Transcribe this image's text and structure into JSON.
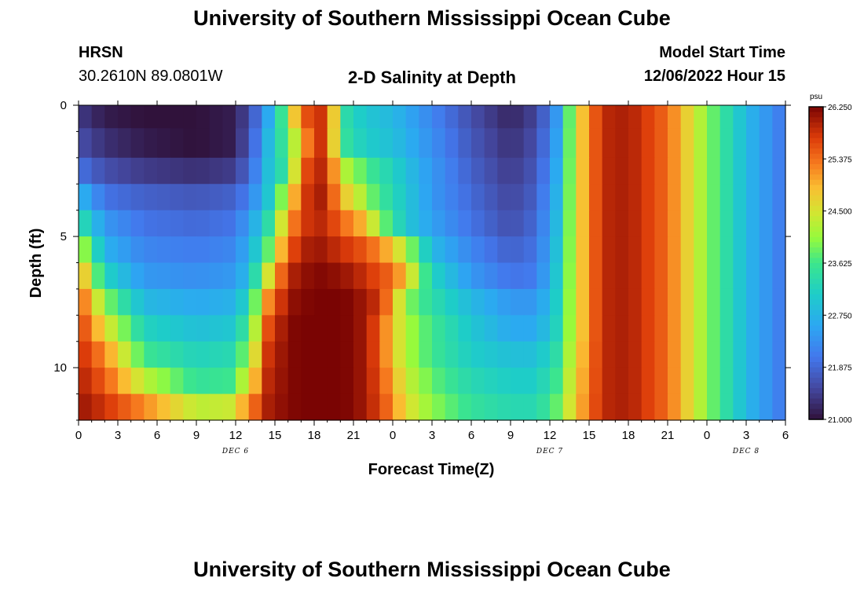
{
  "header": {
    "title": "University of Southern Mississippi Ocean Cube",
    "station": "HRSN",
    "coords": "30.2610N  89.0801W",
    "plot_title": "2-D Salinity at Depth",
    "model_label": "Model Start Time",
    "model_time": "12/06/2022 Hour 15"
  },
  "footer": {
    "title": "University of Southern Mississippi Ocean Cube"
  },
  "chart_data": {
    "type": "heatmap",
    "title": "2-D Salinity at Depth",
    "xlabel": "Forecast Time(Z)",
    "ylabel": "Depth (ft)",
    "x_range_hours": [
      0,
      54
    ],
    "y_range_ft": [
      0,
      12
    ],
    "x_tick_labels": [
      "0",
      "3",
      "6",
      "9",
      "12",
      "15",
      "18",
      "21",
      "0",
      "3",
      "6",
      "9",
      "12",
      "15",
      "18",
      "21",
      "0",
      "3",
      "6"
    ],
    "y_tick_labels": [
      "0",
      "5",
      "10"
    ],
    "y_tick_values": [
      0,
      5,
      10
    ],
    "date_labels": [
      {
        "text": "DEC 6",
        "hour": 12
      },
      {
        "text": "DEC 7",
        "hour": 36
      },
      {
        "text": "DEC 8",
        "hour": 51
      }
    ],
    "colorbar": {
      "unit": "psu",
      "min": 21.0,
      "max": 26.25,
      "tick_labels": [
        "26.250",
        "25.375",
        "24.500",
        "23.625",
        "22.750",
        "21.875",
        "21.000"
      ],
      "tick_values": [
        26.25,
        25.375,
        24.5,
        23.625,
        22.75,
        21.875,
        21.0
      ]
    },
    "rows_depth_ft": [
      0.25,
      1.5,
      2.5,
      3.5,
      4.5,
      5.5,
      6.5,
      7.5,
      8.5,
      9.5,
      10.5,
      11.5
    ],
    "keyframe_hours": [
      0,
      2,
      5,
      9,
      11.5,
      13,
      14.5,
      16,
      17,
      18,
      19,
      20,
      21,
      22,
      23,
      24,
      25,
      27,
      30,
      33,
      35,
      36.5,
      38,
      40,
      42,
      45,
      48,
      51,
      54
    ],
    "keyframe_values": [
      [
        21.4,
        21.1,
        21.0,
        21.0,
        21.1,
        21.5,
        22.6,
        24.0,
        25.6,
        25.6,
        26.0,
        23.5,
        23.2,
        23.0,
        22.9,
        22.8,
        22.6,
        22.2,
        21.6,
        21.2,
        21.5,
        22.4,
        24.5,
        25.9,
        26.0,
        25.4,
        24.0,
        22.8,
        22.0
      ],
      [
        21.6,
        21.3,
        21.1,
        21.0,
        21.1,
        21.6,
        22.8,
        23.8,
        24.8,
        25.8,
        25.8,
        23.6,
        23.3,
        23.1,
        23.0,
        22.9,
        22.7,
        22.3,
        21.7,
        21.3,
        21.6,
        22.5,
        24.5,
        25.9,
        26.0,
        25.4,
        24.0,
        22.8,
        22.0
      ],
      [
        22.0,
        21.6,
        21.4,
        21.3,
        21.4,
        21.8,
        22.9,
        23.6,
        25.4,
        25.9,
        25.9,
        24.4,
        24.0,
        23.7,
        23.4,
        23.2,
        22.9,
        22.4,
        21.8,
        21.4,
        21.7,
        22.6,
        24.5,
        25.9,
        26.0,
        25.4,
        24.0,
        22.8,
        22.0
      ],
      [
        22.8,
        22.0,
        21.8,
        21.7,
        21.8,
        22.1,
        23.0,
        24.4,
        25.6,
        26.0,
        26.0,
        24.8,
        24.6,
        24.0,
        23.6,
        23.3,
        23.0,
        22.4,
        21.9,
        21.5,
        21.8,
        22.7,
        24.5,
        25.9,
        26.0,
        25.4,
        24.0,
        22.8,
        22.0
      ],
      [
        23.5,
        22.4,
        22.0,
        21.9,
        22.0,
        22.4,
        23.4,
        25.0,
        25.7,
        25.9,
        25.9,
        25.4,
        25.2,
        24.8,
        24.0,
        23.5,
        23.0,
        22.5,
        22.0,
        21.6,
        21.9,
        22.8,
        24.5,
        25.9,
        26.0,
        25.4,
        24.0,
        22.8,
        22.0
      ],
      [
        24.4,
        22.7,
        22.2,
        22.1,
        22.2,
        22.6,
        23.8,
        25.5,
        25.9,
        26.1,
        26.0,
        25.8,
        25.7,
        25.5,
        25.2,
        24.8,
        24.2,
        22.8,
        22.2,
        21.8,
        22.0,
        22.9,
        24.5,
        25.9,
        26.0,
        25.4,
        24.0,
        22.8,
        22.0
      ],
      [
        25.2,
        23.2,
        22.4,
        22.3,
        22.4,
        22.8,
        24.5,
        25.9,
        26.1,
        26.2,
        26.2,
        26.1,
        26.0,
        25.8,
        25.6,
        25.4,
        24.8,
        23.2,
        22.4,
        22.0,
        22.1,
        23.0,
        24.5,
        25.9,
        26.0,
        25.4,
        24.0,
        22.8,
        22.0
      ],
      [
        25.6,
        24.0,
        22.8,
        22.6,
        22.7,
        23.2,
        25.2,
        26.1,
        26.2,
        26.25,
        26.25,
        26.25,
        26.2,
        26.0,
        25.8,
        25.0,
        24.0,
        23.4,
        22.8,
        22.4,
        22.4,
        23.1,
        24.5,
        25.9,
        26.0,
        25.4,
        24.0,
        22.8,
        22.0
      ],
      [
        25.8,
        24.6,
        23.2,
        22.9,
        23.0,
        23.6,
        25.6,
        26.2,
        26.25,
        26.25,
        26.25,
        26.25,
        26.2,
        26.0,
        25.5,
        24.8,
        24.2,
        23.6,
        23.0,
        22.6,
        22.6,
        23.2,
        24.5,
        25.9,
        26.0,
        25.4,
        24.0,
        22.8,
        22.0
      ],
      [
        25.9,
        25.2,
        23.6,
        23.2,
        23.3,
        24.0,
        25.8,
        26.2,
        26.25,
        26.25,
        26.25,
        26.25,
        26.2,
        26.0,
        25.5,
        24.8,
        24.2,
        23.6,
        23.1,
        22.9,
        22.9,
        23.4,
        24.6,
        25.9,
        26.0,
        25.4,
        24.0,
        22.8,
        22.0
      ],
      [
        26.0,
        25.5,
        24.3,
        23.5,
        23.6,
        24.5,
        25.9,
        26.2,
        26.25,
        26.25,
        26.25,
        26.25,
        26.2,
        26.0,
        25.6,
        25.0,
        24.4,
        23.8,
        23.3,
        23.1,
        23.1,
        23.6,
        24.7,
        25.9,
        26.0,
        25.4,
        24.0,
        22.8,
        22.0
      ],
      [
        26.1,
        25.8,
        25.2,
        24.3,
        24.4,
        25.2,
        26.0,
        26.2,
        26.25,
        26.25,
        26.25,
        26.25,
        26.2,
        26.0,
        25.7,
        25.2,
        24.6,
        24.0,
        23.5,
        23.3,
        23.3,
        23.8,
        24.8,
        25.9,
        26.0,
        25.4,
        24.0,
        22.8,
        22.0
      ]
    ]
  }
}
